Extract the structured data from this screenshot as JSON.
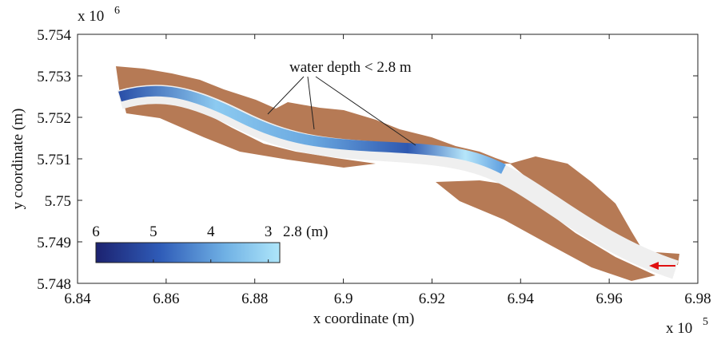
{
  "chart_data": {
    "type": "map",
    "xlabel": "x coordinate (m)",
    "ylabel": "y coordinate (m)",
    "x_multiplier": {
      "base": "x 10",
      "exponent": "5"
    },
    "y_multiplier": {
      "base": "x 10",
      "exponent": "6"
    },
    "xlim": [
      6.84,
      6.98
    ],
    "xticks": [
      6.84,
      6.86,
      6.88,
      6.9,
      6.92,
      6.94,
      6.96,
      6.98
    ],
    "ylim": [
      5.748,
      5.754
    ],
    "yticks": [
      5.748,
      5.749,
      5.75,
      5.751,
      5.752,
      5.753,
      5.754
    ],
    "annotation": "water depth < 2.8 m",
    "colorbar": {
      "lim": [
        6,
        2.8
      ],
      "ticks": [
        6,
        5,
        4,
        3,
        2.8
      ],
      "unit": "(m)"
    }
  }
}
